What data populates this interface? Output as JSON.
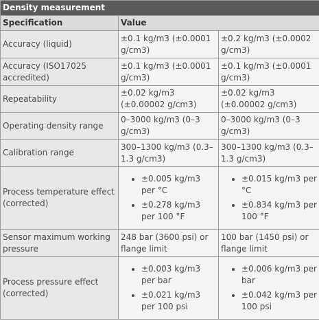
{
  "table": {
    "title": "Density measurement",
    "headers": {
      "specification": "Specification",
      "value": "Value"
    },
    "rows": [
      {
        "label": "Accuracy (liquid)",
        "v1": "±0.1 kg/m3 (±0.0001 g/cm3)",
        "v2": "±0.2 kg/m3 (±0.0002 g/cm3)"
      },
      {
        "label": "Accuracy (ISO17025 accredited)",
        "v1": "±0.1 kg/m3 (±0.0001 g/cm3)",
        "v2": "±0.1 kg/m3 (±0.0001 g/cm3)"
      },
      {
        "label": "Repeatability",
        "v1": "±0.02 kg/m3 (±0.00002 g/cm3)",
        "v2": "±0.02 kg/m3 (±0.00002 g/cm3)"
      },
      {
        "label": "Operating density range",
        "v1": "0–3000 kg/m3 (0–3 g/cm3)",
        "v2": "0–3000 kg/m3 (0–3 g/cm3)"
      },
      {
        "label": "Calibration range",
        "v1": "300–1300 kg/m3 (0.3–1.3 g/cm3)",
        "v2": "300–1300 kg/m3 (0.3–1.3 g/cm3)"
      },
      {
        "label": "Process temperature effect (corrected)",
        "v1_list": [
          "±0.005 kg/m3 per °C",
          "±0.278 kg/m3 per 100 °F"
        ],
        "v2_list": [
          "±0.015 kg/m3 per °C",
          "±0.834 kg/m3 per 100 °F"
        ]
      },
      {
        "label": "Sensor maximum working pressure",
        "v1": "248 bar (3600 psi) or flange limit",
        "v2": "100 bar (1450 psi) or flange limit"
      },
      {
        "label": "Process pressure effect (corrected)",
        "v1_list": [
          "±0.003 kg/m3 per bar",
          "±0.021 kg/m3 per 100 psi"
        ],
        "v2_list": [
          "±0.006 kg/m3 per bar",
          "±0.042 kg/m3 per 100 psi"
        ]
      }
    ]
  }
}
